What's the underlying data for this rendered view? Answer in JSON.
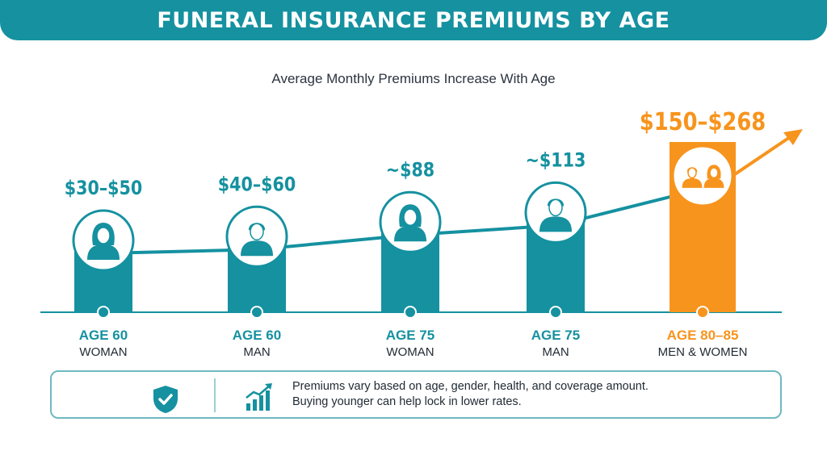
{
  "header": {
    "title": "FUNERAL INSURANCE PREMIUMS BY AGE"
  },
  "colors": {
    "teal": "#1591a0",
    "orange": "#f7941d",
    "text": "#2c3440"
  },
  "chart_data": {
    "type": "bar",
    "title": "FUNERAL INSURANCE PREMIUMS BY AGE",
    "subtitle": "Average Monthly Premiums Increase With Age",
    "categories": [
      "AGE 60 WOMAN",
      "AGE 60 MAN",
      "AGE 75 WOMAN",
      "AGE 75 MAN",
      "AGE 80–85 MEN & WOMEN"
    ],
    "items": [
      {
        "age": "AGE 60",
        "group": "WOMAN",
        "label": "$30–$50",
        "low": 30,
        "high": 50,
        "icon": "woman-icon",
        "color": "#1591a0"
      },
      {
        "age": "AGE 60",
        "group": "MAN",
        "label": "$40–$60",
        "low": 40,
        "high": 60,
        "icon": "man-icon",
        "color": "#1591a0"
      },
      {
        "age": "AGE 75",
        "group": "WOMAN",
        "label": "~$88",
        "low": 88,
        "high": 88,
        "icon": "woman-icon",
        "color": "#1591a0"
      },
      {
        "age": "AGE 75",
        "group": "MAN",
        "label": "~$113",
        "low": 113,
        "high": 113,
        "icon": "man-icon",
        "color": "#1591a0"
      },
      {
        "age": "AGE 80–85",
        "group": "MEN & WOMEN",
        "label": "$150–$268",
        "low": 150,
        "high": 268,
        "icon": "couple-icon",
        "color": "#f7941d"
      }
    ],
    "trend": "increasing",
    "grid": false
  },
  "note": {
    "line1": "Premiums vary based on age, gender, health, and coverage amount.",
    "line2": "Buying younger can help lock in lower rates.",
    "icons": [
      "shield-check-icon",
      "growth-chart-icon"
    ]
  }
}
